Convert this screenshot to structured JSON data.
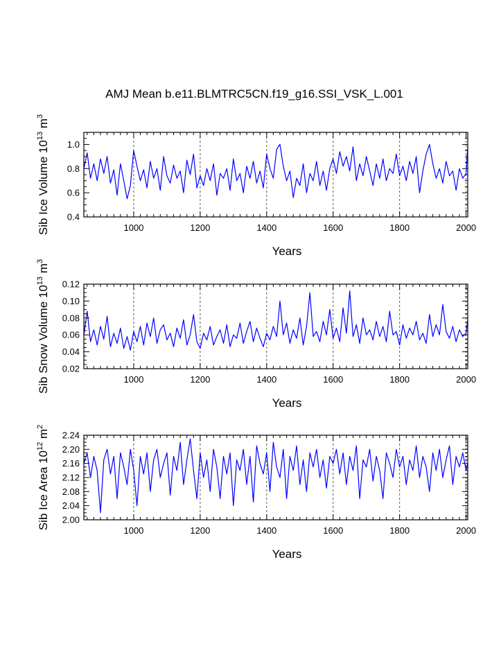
{
  "figure": {
    "title": "AMJ Mean b.e11.BLMTRC5CN.f19_g16.SSI_VSK_L.001"
  },
  "chart_data": [
    {
      "type": "line",
      "ylabel": {
        "main": "Sib Ice Volume 10",
        "exp": "13",
        "unit": " m",
        "unit_exp": "3"
      },
      "xlabel": "Years",
      "xlim": [
        850,
        2005
      ],
      "ylim": [
        0.4,
        1.1
      ],
      "xticks": [
        1000,
        1200,
        1400,
        1600,
        1800,
        2000
      ],
      "yticks": [
        0.4,
        0.6,
        0.8,
        1.0
      ],
      "ytick_labels": [
        "0.4",
        "0.6",
        "0.8",
        "1.0"
      ],
      "yminor_step": 0.05,
      "xgrid": true,
      "series_color": "#0000ff",
      "series": [
        {
          "x": [
            850,
            860,
            870,
            880,
            890,
            900,
            910,
            920,
            930,
            940,
            950,
            960,
            970,
            980,
            990,
            1000,
            1010,
            1020,
            1030,
            1040,
            1050,
            1060,
            1070,
            1080,
            1090,
            1100,
            1110,
            1120,
            1130,
            1140,
            1150,
            1160,
            1170,
            1180,
            1190,
            1200,
            1210,
            1220,
            1230,
            1240,
            1250,
            1260,
            1270,
            1280,
            1290,
            1300,
            1310,
            1320,
            1330,
            1340,
            1350,
            1360,
            1370,
            1380,
            1390,
            1400,
            1410,
            1420,
            1430,
            1440,
            1450,
            1460,
            1470,
            1480,
            1490,
            1500,
            1510,
            1520,
            1530,
            1540,
            1550,
            1560,
            1570,
            1580,
            1590,
            1600,
            1610,
            1620,
            1630,
            1640,
            1650,
            1660,
            1670,
            1680,
            1690,
            1700,
            1710,
            1720,
            1730,
            1740,
            1750,
            1760,
            1770,
            1780,
            1790,
            1800,
            1810,
            1820,
            1830,
            1840,
            1850,
            1860,
            1870,
            1880,
            1890,
            1900,
            1910,
            1920,
            1930,
            1940,
            1950,
            1960,
            1970,
            1980,
            1990,
            2000,
            2005
          ],
          "y": [
            0.8,
            0.93,
            0.72,
            0.84,
            0.7,
            0.88,
            0.76,
            0.9,
            0.68,
            0.79,
            0.58,
            0.84,
            0.7,
            0.55,
            0.66,
            0.95,
            0.82,
            0.7,
            0.79,
            0.64,
            0.86,
            0.72,
            0.8,
            0.62,
            0.9,
            0.74,
            0.68,
            0.83,
            0.72,
            0.78,
            0.6,
            0.87,
            0.75,
            0.92,
            0.64,
            0.74,
            0.66,
            0.8,
            0.7,
            0.84,
            0.58,
            0.76,
            0.72,
            0.8,
            0.62,
            0.88,
            0.7,
            0.76,
            0.6,
            0.82,
            0.72,
            0.86,
            0.68,
            0.78,
            0.64,
            0.92,
            0.8,
            0.72,
            0.96,
            1.0,
            0.82,
            0.7,
            0.78,
            0.56,
            0.72,
            0.66,
            0.84,
            0.6,
            0.76,
            0.7,
            0.86,
            0.66,
            0.78,
            0.62,
            0.8,
            0.88,
            0.76,
            0.94,
            0.82,
            0.9,
            0.78,
            0.98,
            0.7,
            0.84,
            0.74,
            0.9,
            0.78,
            0.66,
            0.84,
            0.72,
            0.88,
            0.7,
            0.8,
            0.76,
            0.92,
            0.74,
            0.82,
            0.7,
            0.86,
            0.76,
            0.9,
            0.6,
            0.78,
            0.92,
            1.0,
            0.84,
            0.72,
            0.8,
            0.68,
            0.86,
            0.74,
            0.78,
            0.62,
            0.8,
            0.72,
            0.76,
            0.98
          ]
        }
      ]
    },
    {
      "type": "line",
      "ylabel": {
        "main": "Sib Snow Volume 10",
        "exp": "13",
        "unit": " m",
        "unit_exp": "3"
      },
      "xlabel": "Years",
      "xlim": [
        850,
        2005
      ],
      "ylim": [
        0.02,
        0.12
      ],
      "xticks": [
        1000,
        1200,
        1400,
        1600,
        1800,
        2000
      ],
      "yticks": [
        0.02,
        0.04,
        0.06,
        0.08,
        0.1,
        0.12
      ],
      "ytick_labels": [
        "0.02",
        "0.04",
        "0.06",
        "0.08",
        "0.10",
        "0.12"
      ],
      "yminor_step": 0.005,
      "xgrid": true,
      "series_color": "#0000ff",
      "series": [
        {
          "x": [
            850,
            860,
            870,
            880,
            890,
            900,
            910,
            920,
            930,
            940,
            950,
            960,
            970,
            980,
            990,
            1000,
            1010,
            1020,
            1030,
            1040,
            1050,
            1060,
            1070,
            1080,
            1090,
            1100,
            1110,
            1120,
            1130,
            1140,
            1150,
            1160,
            1170,
            1180,
            1190,
            1200,
            1210,
            1220,
            1230,
            1240,
            1250,
            1260,
            1270,
            1280,
            1290,
            1300,
            1310,
            1320,
            1330,
            1340,
            1350,
            1360,
            1370,
            1380,
            1390,
            1400,
            1410,
            1420,
            1430,
            1440,
            1450,
            1460,
            1470,
            1480,
            1490,
            1500,
            1510,
            1520,
            1530,
            1540,
            1550,
            1560,
            1570,
            1580,
            1590,
            1600,
            1610,
            1620,
            1630,
            1640,
            1650,
            1660,
            1670,
            1680,
            1690,
            1700,
            1710,
            1720,
            1730,
            1740,
            1750,
            1760,
            1770,
            1780,
            1790,
            1800,
            1810,
            1820,
            1830,
            1840,
            1850,
            1860,
            1870,
            1880,
            1890,
            1900,
            1910,
            1920,
            1930,
            1940,
            1950,
            1960,
            1970,
            1980,
            1990,
            2000,
            2005
          ],
          "y": [
            0.06,
            0.088,
            0.052,
            0.066,
            0.048,
            0.07,
            0.055,
            0.082,
            0.046,
            0.062,
            0.05,
            0.068,
            0.044,
            0.058,
            0.042,
            0.064,
            0.052,
            0.07,
            0.048,
            0.074,
            0.058,
            0.08,
            0.05,
            0.066,
            0.072,
            0.054,
            0.062,
            0.046,
            0.068,
            0.056,
            0.078,
            0.048,
            0.06,
            0.084,
            0.052,
            0.044,
            0.062,
            0.054,
            0.07,
            0.048,
            0.058,
            0.066,
            0.05,
            0.072,
            0.046,
            0.06,
            0.056,
            0.074,
            0.05,
            0.064,
            0.076,
            0.052,
            0.068,
            0.056,
            0.046,
            0.062,
            0.054,
            0.07,
            0.058,
            0.1,
            0.06,
            0.074,
            0.05,
            0.066,
            0.056,
            0.08,
            0.048,
            0.07,
            0.11,
            0.058,
            0.064,
            0.052,
            0.076,
            0.06,
            0.09,
            0.056,
            0.068,
            0.052,
            0.092,
            0.062,
            0.112,
            0.058,
            0.072,
            0.05,
            0.08,
            0.06,
            0.066,
            0.054,
            0.076,
            0.058,
            0.07,
            0.052,
            0.088,
            0.06,
            0.064,
            0.048,
            0.072,
            0.056,
            0.068,
            0.06,
            0.076,
            0.054,
            0.062,
            0.05,
            0.084,
            0.058,
            0.072,
            0.06,
            0.096,
            0.064,
            0.056,
            0.07,
            0.052,
            0.066,
            0.058,
            0.062,
            0.078
          ]
        }
      ]
    },
    {
      "type": "line",
      "ylabel": {
        "main": "Sib Ice Area 10",
        "exp": "12",
        "unit": " m",
        "unit_exp": "2"
      },
      "xlabel": "Years",
      "xlim": [
        850,
        2005
      ],
      "ylim": [
        2.0,
        2.24
      ],
      "xticks": [
        1000,
        1200,
        1400,
        1600,
        1800,
        2000
      ],
      "yticks": [
        2.0,
        2.04,
        2.08,
        2.12,
        2.16,
        2.2,
        2.24
      ],
      "ytick_labels": [
        "2.00",
        "2.04",
        "2.08",
        "2.12",
        "2.16",
        "2.20",
        "2.24"
      ],
      "yminor_step": 0.01,
      "xgrid": true,
      "series_color": "#0000ff",
      "series": [
        {
          "x": [
            850,
            860,
            870,
            880,
            890,
            900,
            910,
            920,
            930,
            940,
            950,
            960,
            970,
            980,
            990,
            1000,
            1010,
            1020,
            1030,
            1040,
            1050,
            1060,
            1070,
            1080,
            1090,
            1100,
            1110,
            1120,
            1130,
            1140,
            1150,
            1160,
            1170,
            1180,
            1190,
            1200,
            1210,
            1220,
            1230,
            1240,
            1250,
            1260,
            1270,
            1280,
            1290,
            1300,
            1310,
            1320,
            1330,
            1340,
            1350,
            1360,
            1370,
            1380,
            1390,
            1400,
            1410,
            1420,
            1430,
            1440,
            1450,
            1460,
            1470,
            1480,
            1490,
            1500,
            1510,
            1520,
            1530,
            1540,
            1550,
            1560,
            1570,
            1580,
            1590,
            1600,
            1610,
            1620,
            1630,
            1640,
            1650,
            1660,
            1670,
            1680,
            1690,
            1700,
            1710,
            1720,
            1730,
            1740,
            1750,
            1760,
            1770,
            1780,
            1790,
            1800,
            1810,
            1820,
            1830,
            1840,
            1850,
            1860,
            1870,
            1880,
            1890,
            1900,
            1910,
            1920,
            1930,
            1940,
            1950,
            1960,
            1970,
            1980,
            1990,
            2000,
            2005
          ],
          "y": [
            2.16,
            2.19,
            2.12,
            2.18,
            2.14,
            2.02,
            2.17,
            2.2,
            2.13,
            2.18,
            2.06,
            2.19,
            2.15,
            2.1,
            2.2,
            2.14,
            2.04,
            2.18,
            2.13,
            2.19,
            2.08,
            2.17,
            2.2,
            2.12,
            2.16,
            2.19,
            2.07,
            2.18,
            2.14,
            2.22,
            2.1,
            2.17,
            2.23,
            2.14,
            2.06,
            2.19,
            2.12,
            2.17,
            2.08,
            2.2,
            2.15,
            2.06,
            2.18,
            2.13,
            2.19,
            2.04,
            2.17,
            2.14,
            2.2,
            2.1,
            2.18,
            2.05,
            2.21,
            2.16,
            2.13,
            2.19,
            2.08,
            2.22,
            2.15,
            2.12,
            2.2,
            2.06,
            2.18,
            2.14,
            2.21,
            2.1,
            2.17,
            2.08,
            2.19,
            2.15,
            2.2,
            2.12,
            2.17,
            2.09,
            2.18,
            2.16,
            2.2,
            2.13,
            2.19,
            2.1,
            2.18,
            2.14,
            2.21,
            2.06,
            2.17,
            2.15,
            2.2,
            2.11,
            2.18,
            2.14,
            2.06,
            2.19,
            2.16,
            2.12,
            2.2,
            2.15,
            2.18,
            2.1,
            2.17,
            2.14,
            2.21,
            2.12,
            2.18,
            2.15,
            2.08,
            2.19,
            2.14,
            2.2,
            2.12,
            2.17,
            2.21,
            2.1,
            2.18,
            2.15,
            2.19,
            2.14,
            2.16
          ]
        }
      ]
    }
  ]
}
